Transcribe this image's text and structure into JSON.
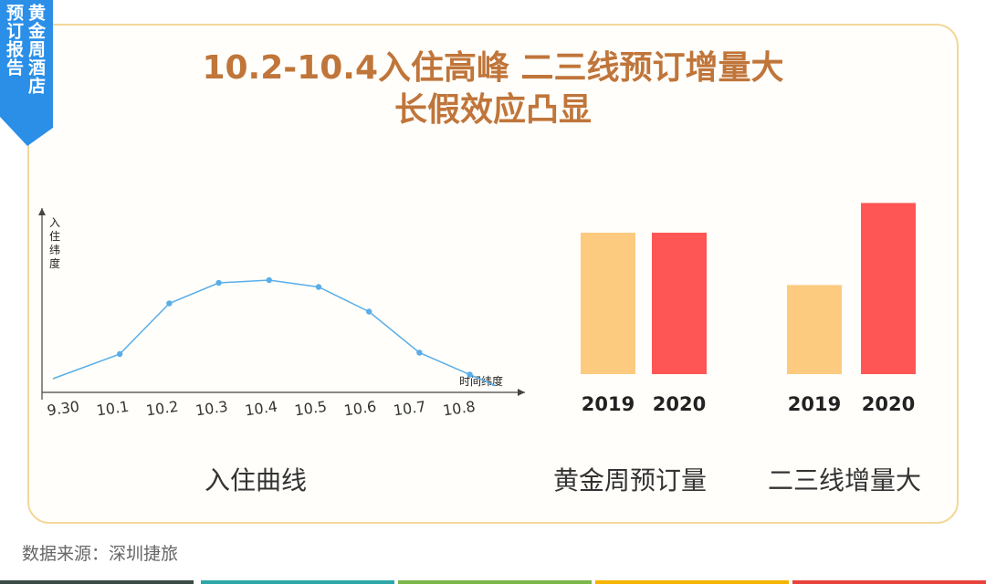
{
  "ribbon": {
    "line1": "黄金周酒店",
    "line2": "预订报告"
  },
  "title": {
    "line1": "10.2-10.4入住高峰  二三线预订增量大",
    "line2": "长假效应凸显"
  },
  "captions": {
    "left": "入住曲线",
    "middle": "黄金周预订量",
    "right": "二三线增量大"
  },
  "source": "数据来源：深圳捷旅",
  "colors": {
    "title": "#c0753a",
    "ribbon": "#2b8fe8",
    "line": "#5aaee8",
    "bar2019": "#fdcb80",
    "bar2020": "#fe5655",
    "card_border": "#f3d89a",
    "stripes": [
      "#3a4a44",
      "#2ca6a6",
      "#7ab648",
      "#f5b400",
      "#e8423c"
    ]
  },
  "chart_data": [
    {
      "type": "line",
      "ylabel": "入住纬度",
      "xlabel": "时间纬度",
      "categories": [
        "9.30",
        "10.1",
        "10.2",
        "10.3",
        "10.4",
        "10.5",
        "10.6",
        "10.7",
        "10.8"
      ],
      "x": [
        9.3,
        10.1,
        10.2,
        10.3,
        10.4,
        10.5,
        10.6,
        10.7,
        10.8,
        10.88
      ],
      "values": [
        10,
        28,
        65,
        80,
        82,
        77,
        59,
        29,
        13,
        5
      ],
      "ylim": [
        0,
        120
      ],
      "note": "Qualitative curve — no numeric y-axis scale printed"
    },
    {
      "type": "bar",
      "categories": [
        "2019",
        "2020"
      ],
      "values": [
        100,
        100
      ],
      "ylim": [
        0,
        120
      ],
      "note": "No numeric labels printed"
    },
    {
      "type": "bar",
      "categories": [
        "2019",
        "2020"
      ],
      "values": [
        63,
        121
      ],
      "ylim": [
        0,
        130
      ],
      "note": "No numeric labels printed"
    }
  ]
}
